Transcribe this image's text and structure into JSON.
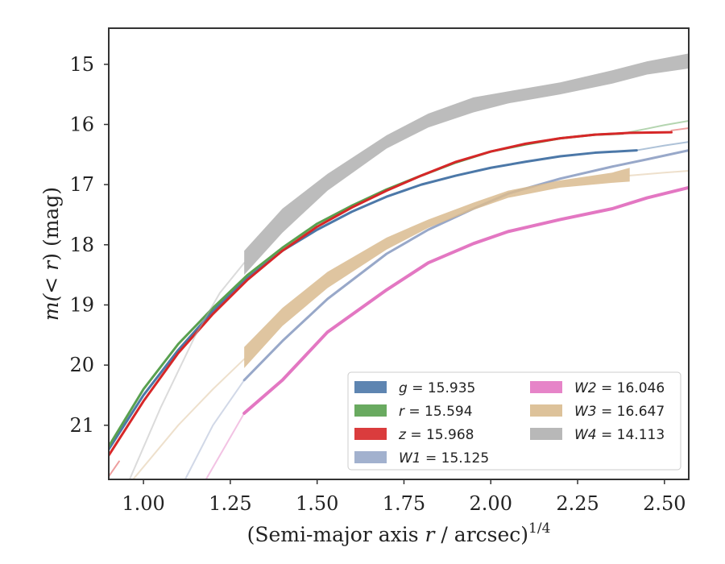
{
  "chart_data": {
    "type": "line",
    "xlabel": {
      "main": "(Semi-major axis ",
      "var": "r",
      "unit": " / arcsec)",
      "sup": "1/4"
    },
    "ylabel": {
      "pre": "m(",
      "op": "< r",
      "post": ") (mag)"
    },
    "xlim": [
      0.9,
      2.57
    ],
    "ylim": [
      21.9,
      14.4
    ],
    "y_inverted": true,
    "x_ticks": [
      1.0,
      1.25,
      1.5,
      1.75,
      2.0,
      2.25,
      2.5
    ],
    "x_tick_labels": [
      "1.00",
      "1.25",
      "1.50",
      "1.75",
      "2.00",
      "2.25",
      "2.50"
    ],
    "y_ticks": [
      15,
      16,
      17,
      18,
      19,
      20,
      21
    ],
    "y_tick_labels": [
      "15",
      "16",
      "17",
      "18",
      "19",
      "20",
      "21"
    ],
    "grid": false,
    "legend_position": "lower-right",
    "series": [
      {
        "name": "g",
        "label_value": "15.935",
        "color": "#4c78a8",
        "band": false,
        "width": 3,
        "x": [
          0.9,
          1.0,
          1.1,
          1.2,
          1.3,
          1.4,
          1.5,
          1.6,
          1.7,
          1.8,
          1.9,
          2.0,
          2.1,
          2.2,
          2.3,
          2.42
        ],
        "y": [
          21.4,
          20.5,
          19.75,
          19.1,
          18.55,
          18.1,
          17.75,
          17.45,
          17.2,
          17.0,
          16.85,
          16.72,
          16.62,
          16.53,
          16.47,
          16.43
        ]
      },
      {
        "name": "g_ext",
        "color": "#4c78a8",
        "band": false,
        "faint": true,
        "width": 2,
        "x": [
          2.42,
          2.5,
          2.57
        ],
        "y": [
          16.43,
          16.35,
          16.29
        ]
      },
      {
        "name": "r",
        "label_value": "15.594",
        "color": "#59a14f",
        "band": false,
        "width": 3,
        "x": [
          0.9,
          1.0,
          1.1,
          1.2,
          1.3,
          1.4,
          1.5,
          1.6,
          1.7,
          1.8,
          1.9,
          2.0,
          2.1,
          2.2,
          2.3,
          2.38
        ],
        "y": [
          21.35,
          20.4,
          19.65,
          19.05,
          18.5,
          18.05,
          17.65,
          17.35,
          17.08,
          16.85,
          16.63,
          16.45,
          16.33,
          16.23,
          16.17,
          16.15
        ]
      },
      {
        "name": "r_ext",
        "color": "#59a14f",
        "band": false,
        "faint": true,
        "width": 2,
        "x": [
          2.38,
          2.45,
          2.5,
          2.57
        ],
        "y": [
          16.15,
          16.07,
          16.01,
          15.94
        ]
      },
      {
        "name": "z",
        "label_value": "15.968",
        "color": "#d62728",
        "band": false,
        "width": 3,
        "x": [
          0.9,
          1.0,
          1.1,
          1.2,
          1.3,
          1.4,
          1.5,
          1.6,
          1.7,
          1.8,
          1.9,
          2.0,
          2.1,
          2.2,
          2.3,
          2.4,
          2.52
        ],
        "y": [
          21.5,
          20.6,
          19.8,
          19.15,
          18.58,
          18.1,
          17.7,
          17.38,
          17.1,
          16.85,
          16.62,
          16.45,
          16.32,
          16.23,
          16.17,
          16.14,
          16.13
        ]
      },
      {
        "name": "z_ext",
        "color": "#d62728",
        "band": false,
        "faint": true,
        "width": 2,
        "x": [
          2.52,
          2.57
        ],
        "y": [
          16.1,
          16.06
        ]
      },
      {
        "name": "z_lowfaint",
        "color": "#d62728",
        "band": false,
        "faint": true,
        "width": 2,
        "x": [
          0.9,
          0.93
        ],
        "y": [
          21.85,
          21.6
        ]
      },
      {
        "name": "W1",
        "label_value": "15.125",
        "color": "#98a8c9",
        "band": false,
        "width": 3,
        "x": [
          1.29,
          1.4,
          1.53,
          1.7,
          1.82,
          1.95,
          2.05,
          2.2,
          2.35,
          2.45,
          2.57
        ],
        "y": [
          20.25,
          19.6,
          18.9,
          18.15,
          17.75,
          17.4,
          17.15,
          16.9,
          16.7,
          16.58,
          16.43
        ]
      },
      {
        "name": "W1_lowfaint",
        "color": "#98a8c9",
        "band": false,
        "faint": true,
        "width": 2,
        "x": [
          1.12,
          1.2,
          1.29
        ],
        "y": [
          21.9,
          21.0,
          20.25
        ]
      },
      {
        "name": "W2",
        "label_value": "16.046",
        "color": "#e377c2",
        "band": false,
        "width": 4,
        "x": [
          1.29,
          1.4,
          1.53,
          1.7,
          1.82,
          1.95,
          2.05,
          2.2,
          2.35,
          2.45,
          2.57
        ],
        "y": [
          20.8,
          20.25,
          19.45,
          18.75,
          18.3,
          17.98,
          17.78,
          17.58,
          17.4,
          17.22,
          17.05
        ]
      },
      {
        "name": "W2_lowfaint",
        "color": "#e377c2",
        "band": false,
        "faint": true,
        "width": 2,
        "x": [
          1.18,
          1.24,
          1.29
        ],
        "y": [
          21.9,
          21.3,
          20.8
        ]
      },
      {
        "name": "W3",
        "label_value": "16.647",
        "color": "#d9bb8f",
        "band": true,
        "x": [
          1.29,
          1.4,
          1.53,
          1.7,
          1.82,
          1.95,
          2.05,
          2.2,
          2.35,
          2.4
        ],
        "y_lo": [
          20.05,
          19.35,
          18.72,
          18.08,
          17.72,
          17.42,
          17.22,
          17.05,
          16.97,
          16.95
        ],
        "y_hi": [
          19.7,
          19.05,
          18.45,
          17.88,
          17.58,
          17.3,
          17.1,
          16.93,
          16.8,
          16.72
        ]
      },
      {
        "name": "W3_ext",
        "color": "#d9bb8f",
        "band": false,
        "faint": true,
        "width": 2,
        "x": [
          2.4,
          2.5,
          2.57
        ],
        "y": [
          16.85,
          16.8,
          16.77
        ]
      },
      {
        "name": "W3_lowfaint",
        "color": "#d9bb8f",
        "band": false,
        "faint": true,
        "width": 2,
        "x": [
          0.97,
          1.1,
          1.2,
          1.29
        ],
        "y": [
          21.9,
          21.0,
          20.4,
          19.9
        ]
      },
      {
        "name": "W4",
        "label_value": "14.113",
        "color": "#b0b0b0",
        "band": true,
        "x": [
          1.29,
          1.4,
          1.53,
          1.7,
          1.82,
          1.95,
          2.05,
          2.2,
          2.35,
          2.45,
          2.57
        ],
        "y_lo": [
          18.5,
          17.8,
          17.1,
          16.4,
          16.05,
          15.8,
          15.65,
          15.5,
          15.32,
          15.17,
          15.07
        ],
        "y_hi": [
          18.1,
          17.4,
          16.82,
          16.18,
          15.82,
          15.55,
          15.45,
          15.3,
          15.1,
          14.95,
          14.82
        ]
      },
      {
        "name": "W4_lowfaint",
        "color": "#b0b0b0",
        "band": false,
        "faint": true,
        "width": 2,
        "x": [
          0.96,
          1.05,
          1.15,
          1.22,
          1.29
        ],
        "y": [
          21.9,
          20.7,
          19.5,
          18.8,
          18.3
        ]
      }
    ],
    "legend": [
      {
        "sym": "g",
        "value": "15.935",
        "color": "#4c78a8"
      },
      {
        "sym": "r",
        "value": "15.594",
        "color": "#59a14f"
      },
      {
        "sym": "z",
        "value": "15.968",
        "color": "#d62728"
      },
      {
        "sym": "W1",
        "value": "15.125",
        "color": "#98a8c9"
      },
      {
        "sym": "W2",
        "value": "16.046",
        "color": "#e377c2"
      },
      {
        "sym": "W3",
        "value": "16.647",
        "color": "#d9bb8f"
      },
      {
        "sym": "W4",
        "value": "14.113",
        "color": "#b0b0b0"
      }
    ]
  }
}
